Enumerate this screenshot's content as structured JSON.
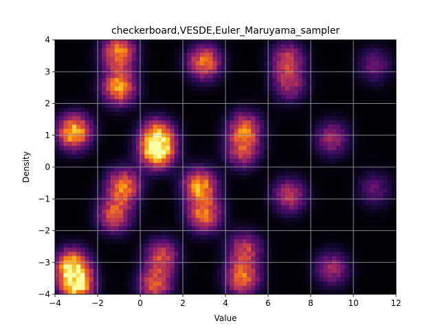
{
  "chart_data": {
    "type": "heatmap",
    "title": "checkerboard,VESDE,Euler_Maruyama_sampler",
    "xlabel": "Value",
    "ylabel": "Density",
    "xlim": [
      -4,
      12
    ],
    "ylim": [
      -4,
      4
    ],
    "xticks": [
      -4,
      -2,
      0,
      2,
      4,
      6,
      8,
      10,
      12
    ],
    "yticks": [
      -4,
      -3,
      -2,
      -1,
      0,
      1,
      2,
      3,
      4
    ],
    "xtick_labels": [
      "−4",
      "−2",
      "0",
      "2",
      "4",
      "6",
      "8",
      "10",
      "12"
    ],
    "ytick_labels": [
      "−4",
      "−3",
      "−2",
      "−1",
      "0",
      "1",
      "2",
      "3",
      "4"
    ],
    "grid": true,
    "colormap": "inferno",
    "blobs": [
      {
        "x": -1.0,
        "y": 3.6,
        "intensity": 0.75
      },
      {
        "x": -1.0,
        "y": 2.5,
        "intensity": 0.78
      },
      {
        "x": 3.0,
        "y": 3.3,
        "intensity": 0.7
      },
      {
        "x": 6.9,
        "y": 3.4,
        "intensity": 0.5
      },
      {
        "x": 7.0,
        "y": 2.6,
        "intensity": 0.42
      },
      {
        "x": 11.0,
        "y": 3.2,
        "intensity": 0.3
      },
      {
        "x": -3.1,
        "y": 1.1,
        "intensity": 0.9
      },
      {
        "x": 0.8,
        "y": 1.0,
        "intensity": 0.65
      },
      {
        "x": 0.8,
        "y": 0.5,
        "intensity": 1.0
      },
      {
        "x": 4.9,
        "y": 1.2,
        "intensity": 0.62
      },
      {
        "x": 4.8,
        "y": 0.5,
        "intensity": 0.5
      },
      {
        "x": 9.0,
        "y": 0.9,
        "intensity": 0.42
      },
      {
        "x": -0.8,
        "y": -0.6,
        "intensity": 0.72
      },
      {
        "x": -1.2,
        "y": -1.5,
        "intensity": 0.6
      },
      {
        "x": 2.8,
        "y": -0.6,
        "intensity": 0.78
      },
      {
        "x": 3.0,
        "y": -1.5,
        "intensity": 0.68
      },
      {
        "x": 7.0,
        "y": -0.9,
        "intensity": 0.5
      },
      {
        "x": 11.0,
        "y": -0.7,
        "intensity": 0.28
      },
      {
        "x": -3.2,
        "y": -3.1,
        "intensity": 0.82
      },
      {
        "x": -3.0,
        "y": -3.7,
        "intensity": 0.95
      },
      {
        "x": 1.0,
        "y": -2.8,
        "intensity": 0.55
      },
      {
        "x": 0.7,
        "y": -3.7,
        "intensity": 0.6
      },
      {
        "x": 4.9,
        "y": -2.6,
        "intensity": 0.52
      },
      {
        "x": 4.8,
        "y": -3.5,
        "intensity": 0.7
      },
      {
        "x": 9.0,
        "y": -3.2,
        "intensity": 0.42
      }
    ]
  }
}
